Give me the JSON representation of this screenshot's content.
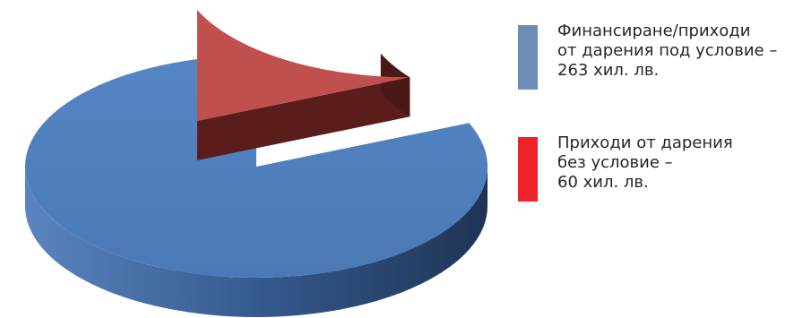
{
  "chart_data": {
    "type": "pie",
    "title": "",
    "slices": [
      {
        "label": "Финансиране/приходи\nот дарения под условие –\n263 хил. лв.",
        "value": 263,
        "color": "#4f81bd",
        "legend_color": "#6e8db6"
      },
      {
        "label": "Приходи  от дарения\nбез условие –\n60 хил. лв.",
        "value": 60,
        "color": "#c0504d",
        "legend_color": "#ee2228"
      }
    ],
    "exploded": true,
    "three_d": true,
    "legend_position": "right"
  }
}
